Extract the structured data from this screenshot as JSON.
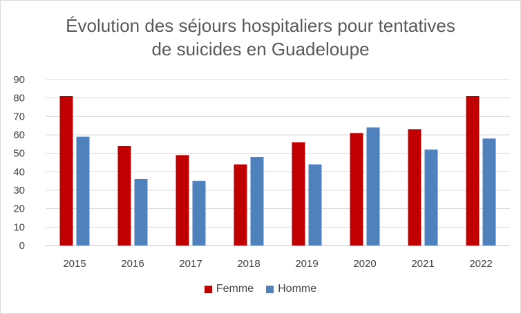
{
  "chart_data": {
    "type": "bar",
    "title_line1": "Évolution des séjours hospitaliers pour tentatives",
    "title_line2": "de suicides en Guadeloupe",
    "categories": [
      "2015",
      "2016",
      "2017",
      "2018",
      "2019",
      "2020",
      "2021",
      "2022"
    ],
    "series": [
      {
        "name": "Femme",
        "color": "#c00000",
        "values": [
          81,
          54,
          49,
          44,
          56,
          61,
          63,
          81
        ]
      },
      {
        "name": "Homme",
        "color": "#4f81bd",
        "values": [
          59,
          36,
          35,
          48,
          44,
          64,
          52,
          58
        ]
      }
    ],
    "ylim": [
      0,
      90
    ],
    "yticks": [
      "0",
      "10",
      "20",
      "30",
      "40",
      "50",
      "60",
      "70",
      "80",
      "90"
    ],
    "grid": true,
    "legend_position": "bottom"
  }
}
